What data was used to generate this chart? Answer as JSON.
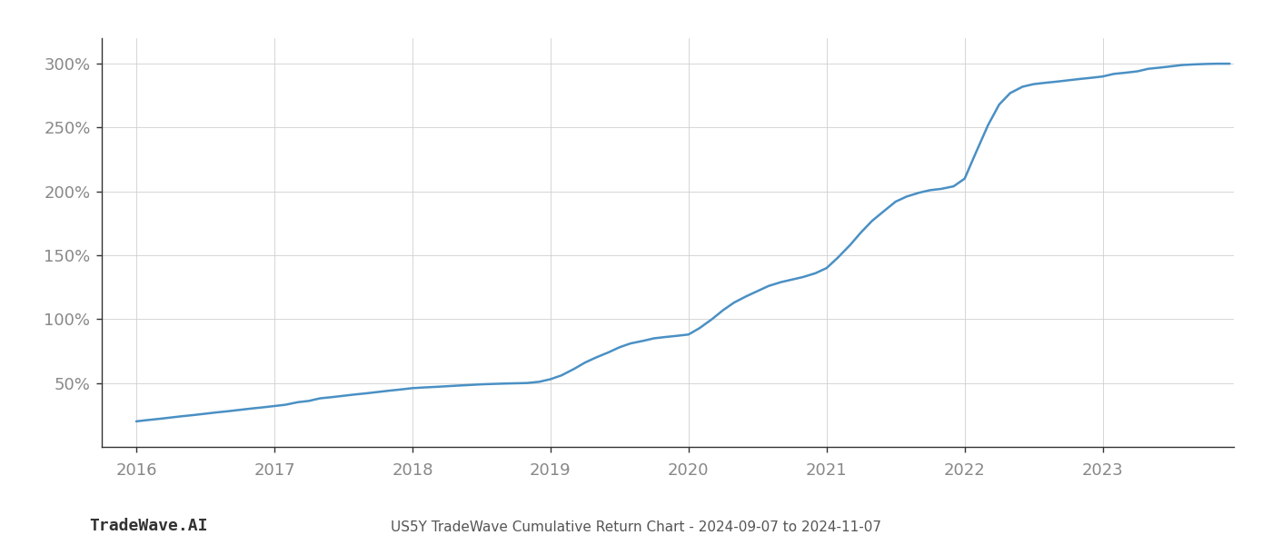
{
  "title": "US5Y TradeWave Cumulative Return Chart - 2024-09-07 to 2024-11-07",
  "watermark": "TradeWave.AI",
  "line_color": "#4a90c4",
  "background_color": "#ffffff",
  "grid_color": "#d0d0d0",
  "x_values": [
    2016.0,
    2016.08,
    2016.17,
    2016.25,
    2016.33,
    2016.42,
    2016.5,
    2016.58,
    2016.67,
    2016.75,
    2016.83,
    2016.92,
    2017.0,
    2017.08,
    2017.17,
    2017.25,
    2017.33,
    2017.42,
    2017.5,
    2017.58,
    2017.67,
    2017.75,
    2017.83,
    2017.92,
    2018.0,
    2018.08,
    2018.17,
    2018.25,
    2018.33,
    2018.42,
    2018.5,
    2018.58,
    2018.67,
    2018.75,
    2018.83,
    2018.92,
    2019.0,
    2019.08,
    2019.17,
    2019.25,
    2019.33,
    2019.42,
    2019.5,
    2019.58,
    2019.67,
    2019.75,
    2019.83,
    2019.92,
    2020.0,
    2020.08,
    2020.17,
    2020.25,
    2020.33,
    2020.42,
    2020.5,
    2020.58,
    2020.67,
    2020.75,
    2020.83,
    2020.92,
    2021.0,
    2021.08,
    2021.17,
    2021.25,
    2021.33,
    2021.42,
    2021.5,
    2021.58,
    2021.67,
    2021.75,
    2021.83,
    2021.92,
    2022.0,
    2022.08,
    2022.17,
    2022.25,
    2022.33,
    2022.42,
    2022.5,
    2022.58,
    2022.67,
    2022.75,
    2022.83,
    2022.92,
    2023.0,
    2023.08,
    2023.17,
    2023.25,
    2023.33,
    2023.42,
    2023.5,
    2023.58,
    2023.67,
    2023.75,
    2023.83,
    2023.92
  ],
  "y_values": [
    20,
    21,
    22,
    23,
    24,
    25,
    26,
    27,
    28,
    29,
    30,
    31,
    32,
    33,
    35,
    36,
    38,
    39,
    40,
    41,
    42,
    43,
    44,
    45,
    46,
    46.5,
    47,
    47.5,
    48,
    48.5,
    49,
    49.3,
    49.6,
    49.8,
    50,
    51,
    53,
    56,
    61,
    66,
    70,
    74,
    78,
    81,
    83,
    85,
    86,
    87,
    88,
    93,
    100,
    107,
    113,
    118,
    122,
    126,
    129,
    131,
    133,
    136,
    140,
    148,
    158,
    168,
    177,
    185,
    192,
    196,
    199,
    201,
    202,
    204,
    210,
    230,
    252,
    268,
    277,
    282,
    284,
    285,
    286,
    287,
    288,
    289,
    290,
    292,
    293,
    294,
    296,
    297,
    298,
    299,
    299.5,
    299.8,
    300,
    300
  ],
  "xlim": [
    2015.75,
    2023.95
  ],
  "ylim": [
    0,
    320
  ],
  "yticks": [
    50,
    100,
    150,
    200,
    250,
    300
  ],
  "ytick_labels": [
    "50%",
    "100%",
    "150%",
    "200%",
    "250%",
    "300%"
  ],
  "xticks": [
    2016,
    2017,
    2018,
    2019,
    2020,
    2021,
    2022,
    2023
  ],
  "xtick_labels": [
    "2016",
    "2017",
    "2018",
    "2019",
    "2020",
    "2021",
    "2022",
    "2023"
  ],
  "line_width": 1.8,
  "title_fontsize": 11,
  "tick_fontsize": 13,
  "watermark_fontsize": 13
}
